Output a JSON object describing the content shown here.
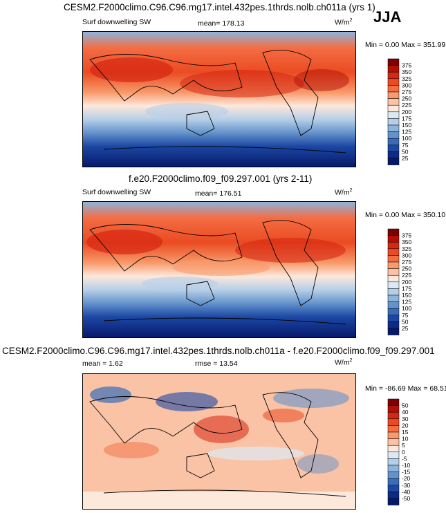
{
  "season": "JJA",
  "panels": [
    {
      "title": "CESM2.F2000climo.C96.C96.mg17.intel.432pes.1thrds.nolb.ch011a (yrs 1)",
      "left_label": "Surf downwelling SW",
      "center_label": "mean= 178.13",
      "units": "W/m",
      "units_sup": "2",
      "minmax": "Min =   0.00 Max = 351.99",
      "levels": [
        "375",
        "350",
        "325",
        "300",
        "275",
        "250",
        "225",
        "200",
        "175",
        "150",
        "125",
        "100",
        "75",
        "50",
        "25"
      ],
      "colors": [
        "#7f0000",
        "#b30f06",
        "#d52712",
        "#ea4b22",
        "#f46d43",
        "#f89a6b",
        "#fbc3a5",
        "#fde8dc",
        "#dce9f5",
        "#b5cfe8",
        "#8db4db",
        "#6492cb",
        "#3a6cb8",
        "#1c47a3",
        "#0d2a85",
        "#061a6b"
      ]
    },
    {
      "title": "f.e20.F2000climo.f09_f09.297.001 (yrs 2-11)",
      "left_label": "Surf downwelling SW",
      "center_label": "mean= 176.51",
      "units": "W/m",
      "units_sup": "2",
      "minmax": "Min =   0.00 Max = 350.10",
      "levels": [
        "375",
        "350",
        "325",
        "300",
        "275",
        "250",
        "225",
        "200",
        "175",
        "150",
        "125",
        "100",
        "75",
        "50",
        "25"
      ],
      "colors": [
        "#7f0000",
        "#b30f06",
        "#d52712",
        "#ea4b22",
        "#f46d43",
        "#f89a6b",
        "#fbc3a5",
        "#fde8dc",
        "#dce9f5",
        "#b5cfe8",
        "#8db4db",
        "#6492cb",
        "#3a6cb8",
        "#1c47a3",
        "#0d2a85",
        "#061a6b"
      ]
    },
    {
      "title": "CESM2.F2000climo.C96.C96.mg17.intel.432pes.1thrds.nolb.ch011a - f.e20.F2000climo.f09_f09.297.001",
      "left_label": "mean =   1.62",
      "center_label": "rmse =  13.54",
      "units": "W/m",
      "units_sup": "2",
      "minmax": "Min = -86.69 Max =  68.51",
      "levels": [
        "50",
        "40",
        "30",
        "20",
        "15",
        "10",
        "5",
        "0",
        "-5",
        "-10",
        "-15",
        "-20",
        "-30",
        "-40",
        "-50"
      ],
      "colors": [
        "#7f0000",
        "#b30f06",
        "#d52712",
        "#ea4b22",
        "#f46d43",
        "#f89a6b",
        "#fbc3a5",
        "#fde8dc",
        "#dce9f5",
        "#b5cfe8",
        "#8db4db",
        "#6492cb",
        "#3a6cb8",
        "#1c47a3",
        "#0d2a85",
        "#061a6b"
      ]
    }
  ],
  "chart_data": [
    {
      "type": "heatmap",
      "title": "CESM2.F2000climo.C96.C96.mg17.intel.432pes.1thrds.nolb.ch011a (yrs 1)",
      "variable": "Surf downwelling SW",
      "mean": 178.13,
      "min": 0.0,
      "max": 351.99,
      "units": "W/m2",
      "colorbar_levels": [
        25,
        50,
        75,
        100,
        125,
        150,
        175,
        200,
        225,
        250,
        275,
        300,
        325,
        350,
        375
      ]
    },
    {
      "type": "heatmap",
      "title": "f.e20.F2000climo.f09_f09.297.001 (yrs 2-11)",
      "variable": "Surf downwelling SW",
      "mean": 176.51,
      "min": 0.0,
      "max": 350.1,
      "units": "W/m2",
      "colorbar_levels": [
        25,
        50,
        75,
        100,
        125,
        150,
        175,
        200,
        225,
        250,
        275,
        300,
        325,
        350,
        375
      ]
    },
    {
      "type": "heatmap",
      "title": "CESM2.F2000climo.C96.C96.mg17.intel.432pes.1thrds.nolb.ch011a - f.e20.F2000climo.f09_f09.297.001",
      "mean": 1.62,
      "rmse": 13.54,
      "min": -86.69,
      "max": 68.51,
      "units": "W/m2",
      "colorbar_levels": [
        -50,
        -40,
        -30,
        -20,
        -15,
        -10,
        -5,
        0,
        5,
        10,
        15,
        20,
        30,
        40,
        50
      ]
    }
  ]
}
